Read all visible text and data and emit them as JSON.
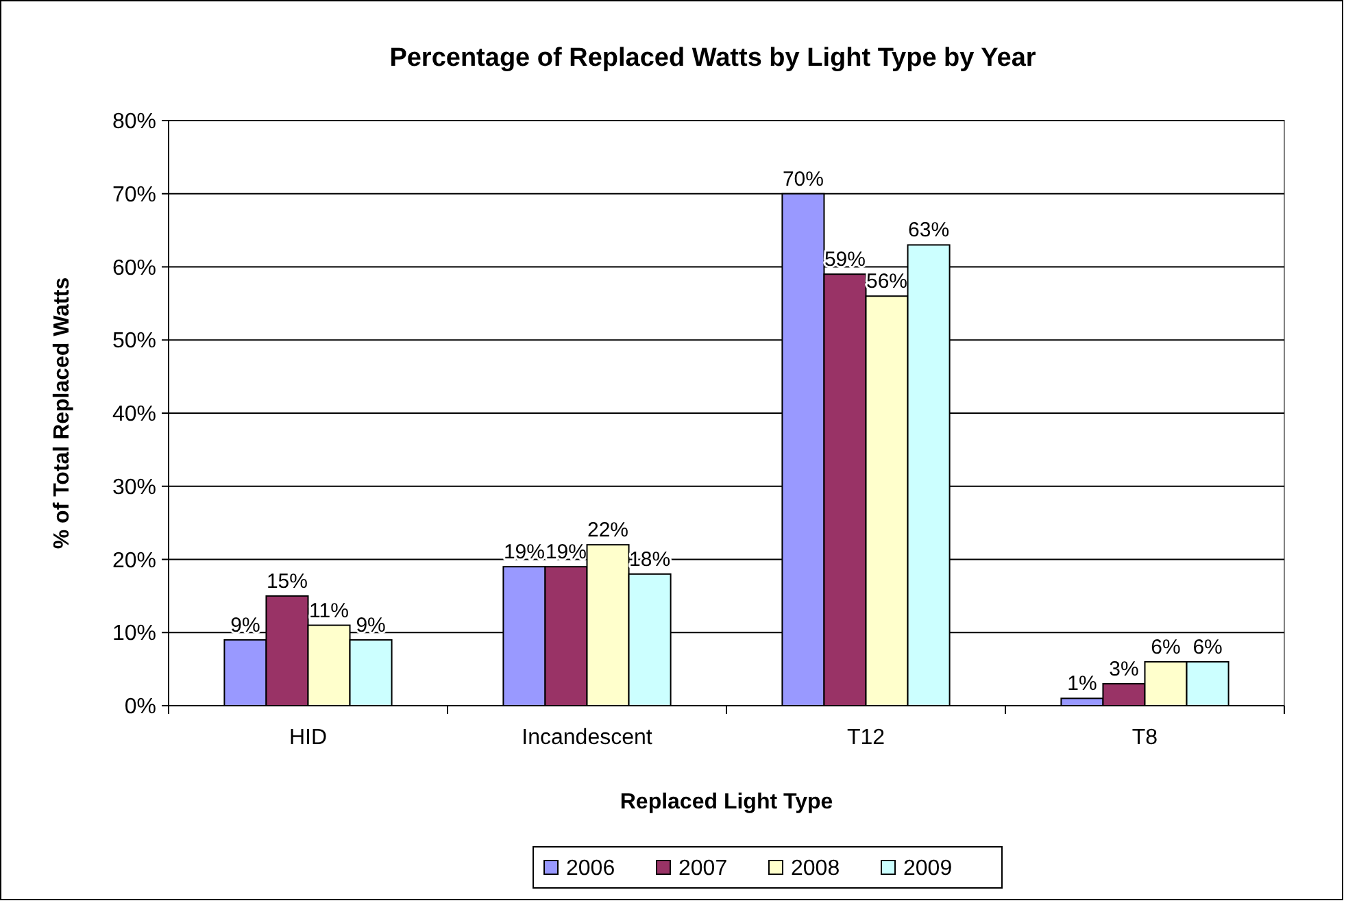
{
  "chart_data": {
    "type": "bar",
    "title": "Percentage of Replaced Watts by Light Type by Year",
    "xlabel": "Replaced Light Type",
    "ylabel": "% of Total Replaced Watts",
    "categories": [
      "HID",
      "Incandescent",
      "T12",
      "T8"
    ],
    "series": [
      {
        "name": "2006",
        "color": "#9999ff",
        "values": [
          9,
          19,
          70,
          1
        ],
        "value_labels": [
          "9%",
          "19%",
          "70%",
          "1%"
        ]
      },
      {
        "name": "2007",
        "color": "#993366",
        "values": [
          15,
          19,
          59,
          3
        ],
        "value_labels": [
          "15%",
          "19%",
          "59%",
          "3%"
        ]
      },
      {
        "name": "2008",
        "color": "#ffffcc",
        "values": [
          11,
          22,
          56,
          6
        ],
        "value_labels": [
          "11%",
          "22%",
          "56%",
          "6%"
        ]
      },
      {
        "name": "2009",
        "color": "#ccffff",
        "values": [
          9,
          18,
          63,
          6
        ],
        "value_labels": [
          "9%",
          "18%",
          "63%",
          "6%"
        ]
      }
    ],
    "ylim": [
      0,
      80
    ],
    "yticks": [
      {
        "value": 0,
        "label": "0%"
      },
      {
        "value": 10,
        "label": "10%"
      },
      {
        "value": 20,
        "label": "20%"
      },
      {
        "value": 30,
        "label": "30%"
      },
      {
        "value": 40,
        "label": "40%"
      },
      {
        "value": 50,
        "label": "50%"
      },
      {
        "value": 60,
        "label": "60%"
      },
      {
        "value": 70,
        "label": "70%"
      },
      {
        "value": 80,
        "label": "80%"
      }
    ],
    "grid": "y",
    "legend": "bottom"
  }
}
